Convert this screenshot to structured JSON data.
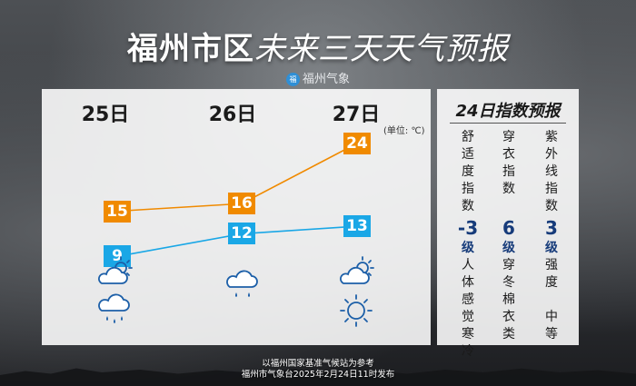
{
  "header": {
    "title_main": "福州市区",
    "title_sub": "未来三天天气预报",
    "brand": "福州气象",
    "brand_logo": "福"
  },
  "forecast": {
    "unit_label": "(单位: ℃)",
    "days": [
      {
        "date": "25日",
        "high": "15",
        "low": "9",
        "icon_day": "cloudy-with-sun-icon",
        "icon_night": "rain-cloud-icon"
      },
      {
        "date": "26日",
        "high": "16",
        "low": "12",
        "icon_day": "rain-cloud-icon",
        "icon_night": ""
      },
      {
        "date": "27日",
        "high": "24",
        "low": "13",
        "icon_day": "cloudy-with-sun-icon",
        "icon_night": "sun-icon"
      }
    ]
  },
  "chart_data": {
    "type": "line",
    "categories": [
      "25日",
      "26日",
      "27日"
    ],
    "series": [
      {
        "values": [
          15,
          16,
          24
        ],
        "color": "#f08a00"
      },
      {
        "values": [
          9,
          12,
          13
        ],
        "color": "#1aa7e6"
      }
    ],
    "ylabel": "(单位: ℃)"
  },
  "indices": {
    "title": "24日指数预报",
    "items": [
      {
        "name": [
          "舒",
          "适",
          "度",
          "指",
          "数"
        ],
        "value": "-3",
        "level": "级",
        "desc": [
          "人",
          "体",
          "感",
          "觉",
          "寒",
          "冷"
        ]
      },
      {
        "name": [
          "穿",
          "衣",
          "指",
          "数"
        ],
        "value": "6",
        "level": "级",
        "desc": [
          "穿",
          "冬",
          "棉",
          "衣",
          "类"
        ]
      },
      {
        "name": [
          "紫",
          "外",
          "线",
          "指",
          "数"
        ],
        "value": "3",
        "level": "级",
        "desc": [
          "强",
          "度",
          "",
          "中",
          "等"
        ]
      }
    ]
  },
  "footer": {
    "line1": "以福州国家基准气候站为参考",
    "line2": "福州市气象台2025年2月24日11时发布"
  },
  "colors": {
    "high": "#f08a00",
    "low": "#1aa7e6",
    "index_value": "#163b7a"
  }
}
